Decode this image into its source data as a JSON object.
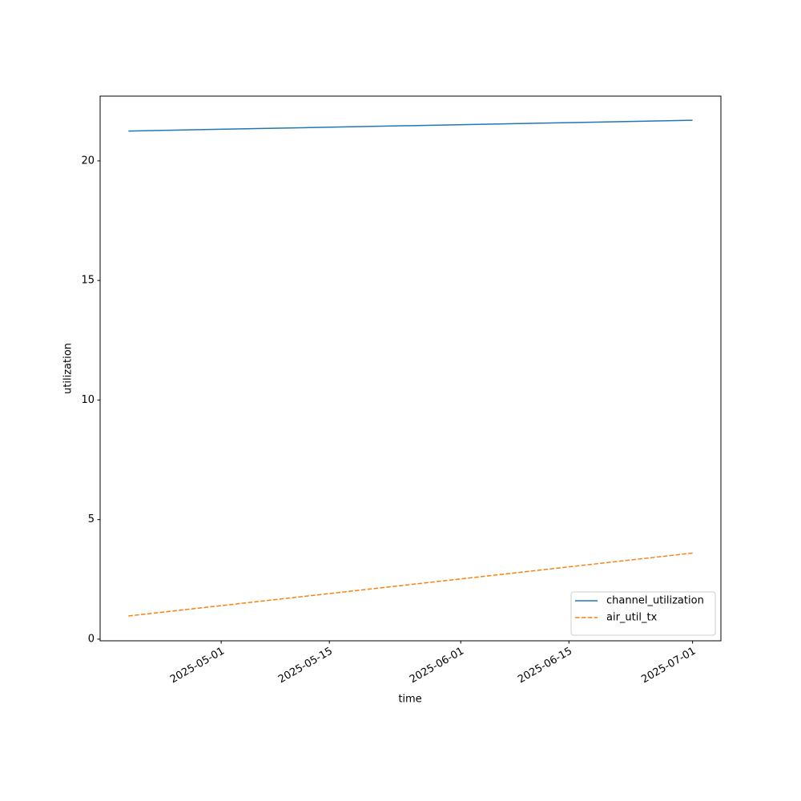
{
  "chart_data": {
    "type": "line",
    "xlabel": "time",
    "ylabel": "utilization",
    "x": [
      "2025-04-19",
      "2025-07-01"
    ],
    "series": [
      {
        "name": "channel_utilization",
        "color": "#1f77b4",
        "linestyle": "solid",
        "values": [
          21.25,
          21.7
        ]
      },
      {
        "name": "air_util_tx",
        "color": "#ff7f0e",
        "linestyle": "dashed",
        "values": [
          0.97,
          3.6
        ]
      }
    ],
    "xlim": [
      "2025-04-15T08:00",
      "2025-07-04T16:00"
    ],
    "xticks": [
      "2025-05-01",
      "2025-05-15",
      "2025-06-01",
      "2025-06-15",
      "2025-07-01"
    ],
    "ylim": [
      -0.07,
      22.71
    ],
    "yticks": [
      0,
      5,
      10,
      15,
      20
    ],
    "grid": false,
    "legend": "lower right"
  }
}
